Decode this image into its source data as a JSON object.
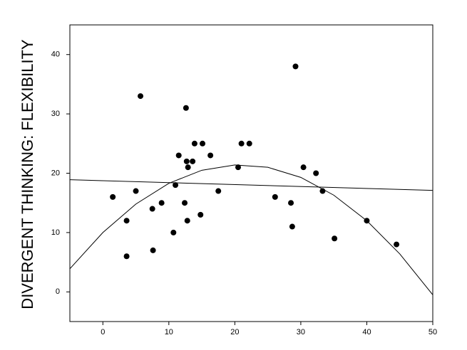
{
  "chart_data": {
    "type": "scatter",
    "y_label": "DIVERGENT THINKING: FLEXIBILITY",
    "xlim": [
      -5,
      50
    ],
    "xticks": [
      0,
      10,
      20,
      30,
      40,
      50
    ],
    "ylim": [
      -5,
      45
    ],
    "yticks": [
      0,
      10,
      20,
      30,
      40
    ],
    "series": [
      {
        "type": "scatter",
        "color": "#000000",
        "x": [
          1.5,
          3.6,
          3.6,
          5,
          5.7,
          7.5,
          7.6,
          8.9,
          10.7,
          11,
          11.5,
          12.4,
          12.6,
          12.7,
          12.9,
          12.8,
          13.6,
          13.9,
          14.8,
          15.1,
          16.3,
          17.5,
          20.5,
          21,
          22.2,
          26.1,
          28.5,
          28.7,
          29.2,
          30.4,
          32.3,
          33.3,
          35.1,
          40,
          44.5
        ],
        "values": [
          16,
          12,
          6,
          17,
          33,
          14,
          7,
          15,
          10,
          18,
          23,
          15,
          31,
          22,
          21,
          12,
          22,
          25,
          13,
          25,
          23,
          17,
          21,
          25,
          25,
          16,
          15,
          11,
          38,
          21,
          20,
          17,
          9,
          12,
          8
        ]
      },
      {
        "type": "line",
        "color": "#000000",
        "x": [
          -5,
          50
        ],
        "values": [
          18.9,
          17.1
        ]
      },
      {
        "type": "line",
        "color": "#000000",
        "x": [
          -5,
          0,
          5,
          10,
          15,
          20,
          25,
          30,
          35,
          40,
          45,
          50
        ],
        "values": [
          3.9,
          10,
          14.8,
          18.3,
          20.5,
          21.4,
          21.0,
          19.3,
          16.3,
          12.0,
          6.4,
          -0.5
        ]
      }
    ]
  }
}
